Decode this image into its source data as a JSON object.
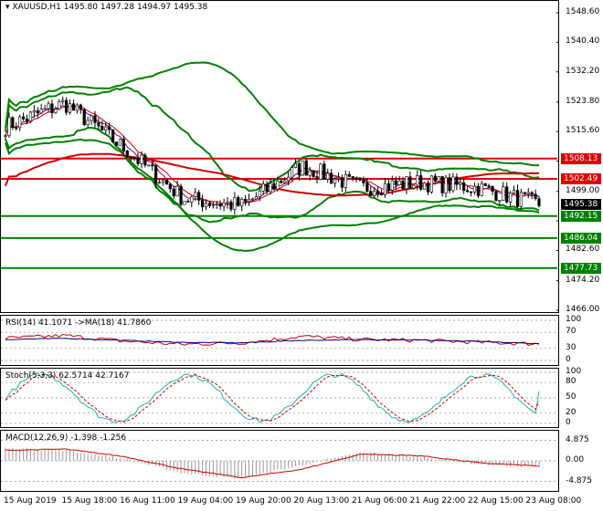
{
  "header": {
    "symbol": "XAUUSD,H1",
    "ohlc": "1495.80 1497.28 1494.97 1495.38"
  },
  "price_axis": [
    "1548.60",
    "1540.40",
    "1532.20",
    "1523.80",
    "1515.60",
    "1507.40",
    "1499.00",
    "1490.80",
    "1482.60",
    "1474.20",
    "1466.00"
  ],
  "price_tags": [
    {
      "value": "1508.13",
      "color": "#e00000"
    },
    {
      "value": "1502.49",
      "color": "#e00000"
    },
    {
      "value": "1495.38",
      "color": "#000000"
    },
    {
      "value": "1492.15",
      "color": "#008000"
    },
    {
      "value": "1486.04",
      "color": "#008000"
    },
    {
      "value": "1477.73",
      "color": "#008000"
    }
  ],
  "rsi": {
    "label": "RSI(14) 41.1071  ->MA(18) 41.7860",
    "axis": [
      "100",
      "70",
      "30",
      "0"
    ]
  },
  "stoch": {
    "label": "Stoch(5,3,3) 62.5714 42.7167",
    "axis": [
      "100",
      "80",
      "50",
      "20",
      "0"
    ]
  },
  "macd": {
    "label": "MACD(12,26,9) -1.398 -1.256",
    "axis": [
      "4.875",
      "0.00",
      "-4.875"
    ]
  },
  "time_axis": [
    "15 Aug 2019",
    "15 Aug 18:00",
    "16 Aug 11:00",
    "19 Aug 04:00",
    "19 Aug 20:00",
    "20 Aug 13:00",
    "21 Aug 06:00",
    "21 Aug 22:00",
    "22 Aug 15:00",
    "23 Aug 08:00"
  ],
  "chart_data": [
    {
      "type": "line",
      "title": "XAUUSD,H1",
      "ylim": [
        1466.0,
        1548.6
      ],
      "x": [
        "15 Aug 2019",
        "15 Aug 18:00",
        "16 Aug 11:00",
        "19 Aug 04:00",
        "19 Aug 20:00",
        "20 Aug 13:00",
        "21 Aug 06:00",
        "21 Aug 22:00",
        "22 Aug 15:00",
        "23 Aug 08:00"
      ],
      "series": [
        {
          "name": "close",
          "values": [
            1517.0,
            1523.5,
            1511.0,
            1497.0,
            1495.0,
            1506.0,
            1500.0,
            1501.5,
            1500.0,
            1495.4
          ]
        }
      ],
      "horizontal_levels": [
        {
          "value": 1508.13,
          "color": "#e00000"
        },
        {
          "value": 1502.49,
          "color": "#e00000"
        },
        {
          "value": 1492.15,
          "color": "#008000"
        },
        {
          "value": 1486.04,
          "color": "#008000"
        },
        {
          "value": 1477.73,
          "color": "#008000"
        }
      ]
    },
    {
      "type": "line",
      "title": "RSI(14) 41.1071  ->MA(18) 41.7860",
      "ylim": [
        0,
        100
      ],
      "series": [
        {
          "name": "RSI",
          "values": [
            55,
            62,
            48,
            40,
            44,
            60,
            52,
            50,
            45,
            41.1
          ]
        },
        {
          "name": "MA",
          "values": [
            52,
            55,
            50,
            45,
            44,
            50,
            52,
            51,
            47,
            41.8
          ]
        }
      ]
    },
    {
      "type": "line",
      "title": "Stoch(5,3,3) 62.5714 42.7167",
      "ylim": [
        0,
        100
      ],
      "series": [
        {
          "name": "%K",
          "values": [
            90,
            20,
            95,
            10,
            90,
            15,
            95,
            10,
            90,
            62.6
          ]
        },
        {
          "name": "%D",
          "values": [
            80,
            30,
            85,
            20,
            80,
            25,
            85,
            20,
            80,
            42.7
          ]
        }
      ]
    },
    {
      "type": "bar",
      "title": "MACD(12,26,9) -1.398 -1.256",
      "ylim": [
        -4.875,
        4.875
      ],
      "series": [
        {
          "name": "MACD",
          "values": [
            3.0,
            2.5,
            0.5,
            -3.0,
            -4.2,
            -1.0,
            2.0,
            1.0,
            -0.8,
            -1.398
          ]
        },
        {
          "name": "Signal",
          "values": [
            2.5,
            2.8,
            1.0,
            -2.0,
            -4.0,
            -2.0,
            1.6,
            1.2,
            -0.5,
            -1.256
          ]
        }
      ]
    }
  ]
}
